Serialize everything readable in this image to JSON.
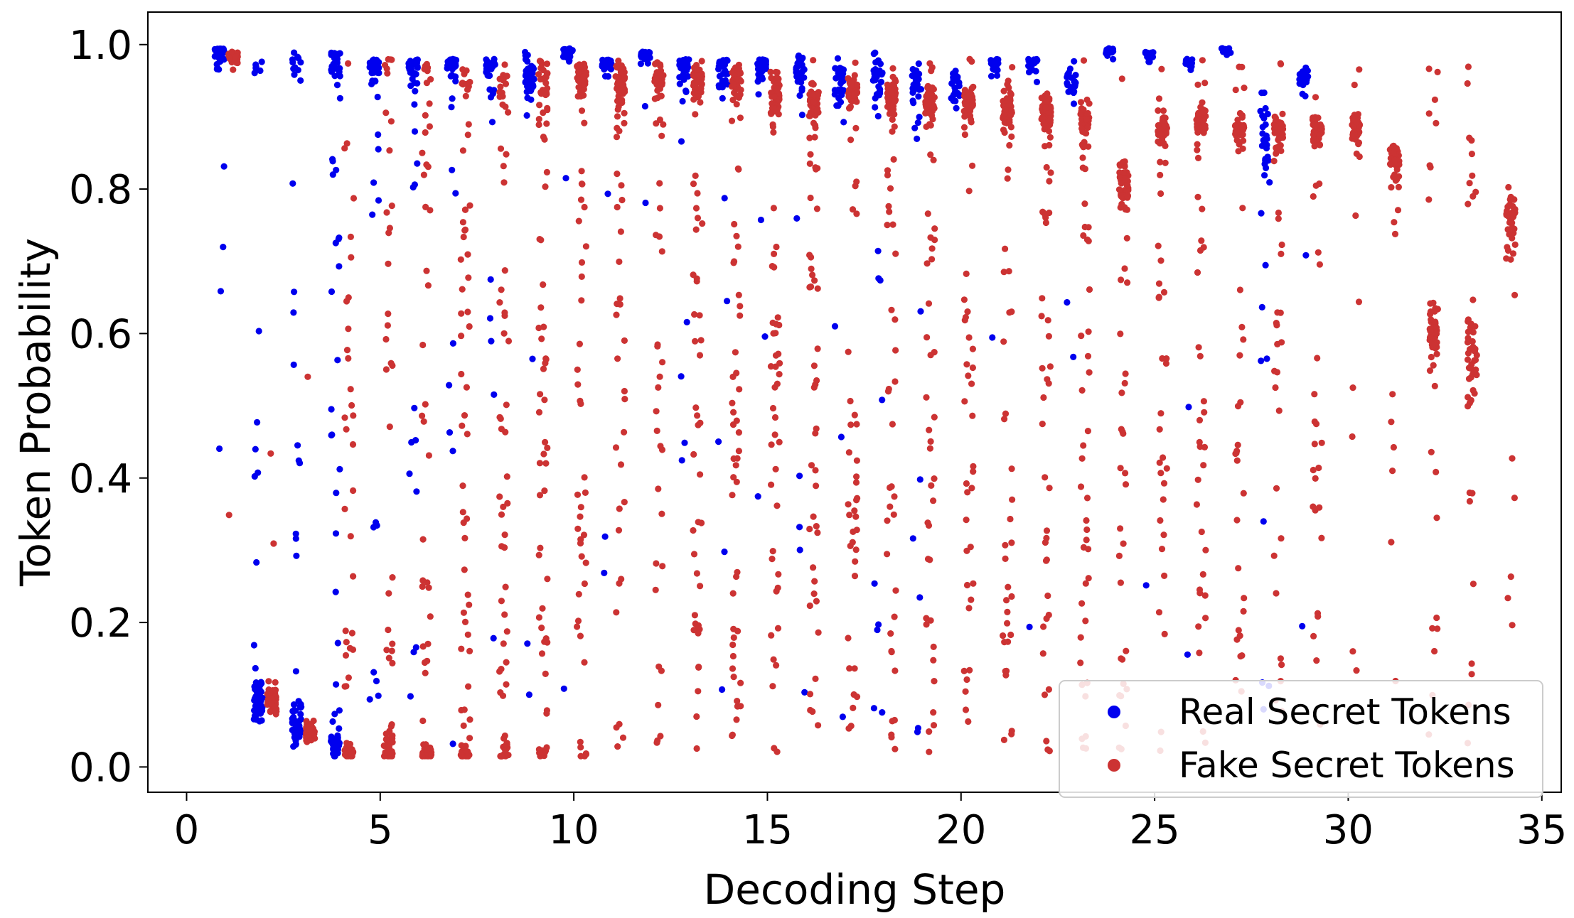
{
  "chart_data": {
    "type": "scatter",
    "title": "",
    "xlabel": "Decoding Step",
    "ylabel": "Token Probability",
    "xlim": [
      -1,
      35.5
    ],
    "ylim": [
      -0.035,
      1.045
    ],
    "xticks": [
      0,
      5,
      10,
      15,
      20,
      25,
      30,
      35
    ],
    "xtick_labels": [
      "0",
      "5",
      "10",
      "15",
      "20",
      "25",
      "30",
      "35"
    ],
    "yticks": [
      0.0,
      0.2,
      0.4,
      0.6,
      0.8,
      1.0
    ],
    "ytick_labels": [
      "0.0",
      "0.2",
      "0.4",
      "0.6",
      "0.8",
      "1.0"
    ],
    "legend_position": "bottom-right",
    "series": [
      {
        "name": "Real Secret Tokens",
        "color": "#0000ee",
        "x_offset": -0.15,
        "jitter": 0.12,
        "max_step": 29,
        "profile": [
          {
            "step": 1,
            "high_center": 0.995,
            "high_spread": 0.02,
            "high_count": 45,
            "low_center": 0.0,
            "low_spread": 0.0,
            "low_count": 0,
            "scatter_count": 4
          },
          {
            "step": 2,
            "high_center": 0.98,
            "high_spread": 0.03,
            "high_count": 6,
            "low_center": 0.09,
            "low_spread": 0.03,
            "low_count": 40,
            "scatter_count": 10
          },
          {
            "step": 3,
            "high_center": 0.99,
            "high_spread": 0.03,
            "high_count": 10,
            "low_center": 0.06,
            "low_spread": 0.03,
            "low_count": 35,
            "scatter_count": 14
          },
          {
            "step": 4,
            "high_center": 0.99,
            "high_spread": 0.03,
            "high_count": 25,
            "low_center": 0.03,
            "low_spread": 0.02,
            "low_count": 25,
            "scatter_count": 25
          },
          {
            "step": 5,
            "high_center": 0.98,
            "high_spread": 0.04,
            "high_count": 40,
            "low_center": 0.0,
            "low_spread": 0.0,
            "low_count": 0,
            "scatter_count": 14
          },
          {
            "step": 6,
            "high_center": 0.98,
            "high_spread": 0.05,
            "high_count": 40,
            "low_center": 0.0,
            "low_spread": 0.0,
            "low_count": 0,
            "scatter_count": 12
          },
          {
            "step": 7,
            "high_center": 0.98,
            "high_spread": 0.04,
            "high_count": 30,
            "low_center": 0.0,
            "low_spread": 0.0,
            "low_count": 0,
            "scatter_count": 10
          },
          {
            "step": 8,
            "high_center": 0.98,
            "high_spread": 0.05,
            "high_count": 35,
            "low_center": 0.0,
            "low_spread": 0.0,
            "low_count": 0,
            "scatter_count": 6
          },
          {
            "step": 9,
            "high_center": 0.97,
            "high_spread": 0.05,
            "high_count": 45,
            "low_center": 0.0,
            "low_spread": 0.0,
            "low_count": 0,
            "scatter_count": 3
          },
          {
            "step": 10,
            "high_center": 0.995,
            "high_spread": 0.02,
            "high_count": 30,
            "low_center": 0.0,
            "low_spread": 0.0,
            "low_count": 0,
            "scatter_count": 2
          },
          {
            "step": 11,
            "high_center": 0.98,
            "high_spread": 0.03,
            "high_count": 35,
            "low_center": 0.0,
            "low_spread": 0.0,
            "low_count": 0,
            "scatter_count": 3
          },
          {
            "step": 12,
            "high_center": 0.99,
            "high_spread": 0.02,
            "high_count": 30,
            "low_center": 0.0,
            "low_spread": 0.0,
            "low_count": 0,
            "scatter_count": 2
          },
          {
            "step": 13,
            "high_center": 0.98,
            "high_spread": 0.04,
            "high_count": 35,
            "low_center": 0.0,
            "low_spread": 0.0,
            "low_count": 0,
            "scatter_count": 6
          },
          {
            "step": 14,
            "high_center": 0.98,
            "high_spread": 0.04,
            "high_count": 35,
            "low_center": 0.0,
            "low_spread": 0.0,
            "low_count": 0,
            "scatter_count": 6
          },
          {
            "step": 15,
            "high_center": 0.98,
            "high_spread": 0.03,
            "high_count": 40,
            "low_center": 0.0,
            "low_spread": 0.0,
            "low_count": 0,
            "scatter_count": 4
          },
          {
            "step": 16,
            "high_center": 0.97,
            "high_spread": 0.04,
            "high_count": 30,
            "low_center": 0.0,
            "low_spread": 0.0,
            "low_count": 0,
            "scatter_count": 5
          },
          {
            "step": 17,
            "high_center": 0.96,
            "high_spread": 0.05,
            "high_count": 30,
            "low_center": 0.0,
            "low_spread": 0.0,
            "low_count": 0,
            "scatter_count": 4
          },
          {
            "step": 18,
            "high_center": 0.96,
            "high_spread": 0.05,
            "high_count": 28,
            "low_center": 0.0,
            "low_spread": 0.0,
            "low_count": 0,
            "scatter_count": 10
          },
          {
            "step": 19,
            "high_center": 0.96,
            "high_spread": 0.05,
            "high_count": 28,
            "low_center": 0.0,
            "low_spread": 0.0,
            "low_count": 0,
            "scatter_count": 8
          },
          {
            "step": 20,
            "high_center": 0.95,
            "high_spread": 0.05,
            "high_count": 24,
            "low_center": 0.0,
            "low_spread": 0.0,
            "low_count": 0,
            "scatter_count": 1
          },
          {
            "step": 21,
            "high_center": 0.98,
            "high_spread": 0.03,
            "high_count": 22,
            "low_center": 0.0,
            "low_spread": 0.0,
            "low_count": 0,
            "scatter_count": 1
          },
          {
            "step": 22,
            "high_center": 0.98,
            "high_spread": 0.03,
            "high_count": 22,
            "low_center": 0.0,
            "low_spread": 0.0,
            "low_count": 0,
            "scatter_count": 1
          },
          {
            "step": 23,
            "high_center": 0.96,
            "high_spread": 0.05,
            "high_count": 20,
            "low_center": 0.0,
            "low_spread": 0.0,
            "low_count": 0,
            "scatter_count": 2
          },
          {
            "step": 24,
            "high_center": 0.995,
            "high_spread": 0.02,
            "high_count": 14,
            "low_center": 0.0,
            "low_spread": 0.0,
            "low_count": 0,
            "scatter_count": 0
          },
          {
            "step": 25,
            "high_center": 0.99,
            "high_spread": 0.03,
            "high_count": 16,
            "low_center": 0.0,
            "low_spread": 0.0,
            "low_count": 0,
            "scatter_count": 1
          },
          {
            "step": 26,
            "high_center": 0.98,
            "high_spread": 0.03,
            "high_count": 14,
            "low_center": 0.0,
            "low_spread": 0.0,
            "low_count": 0,
            "scatter_count": 2
          },
          {
            "step": 27,
            "high_center": 0.995,
            "high_spread": 0.01,
            "high_count": 12,
            "low_center": 0.0,
            "low_spread": 0.0,
            "low_count": 0,
            "scatter_count": 0
          },
          {
            "step": 28,
            "high_center": 0.9,
            "high_spread": 0.1,
            "high_count": 24,
            "low_center": 0.0,
            "low_spread": 0.0,
            "low_count": 0,
            "scatter_count": 10
          },
          {
            "step": 29,
            "high_center": 0.96,
            "high_spread": 0.04,
            "high_count": 20,
            "low_center": 0.0,
            "low_spread": 0.0,
            "low_count": 0,
            "scatter_count": 2
          }
        ]
      },
      {
        "name": "Fake Secret Tokens",
        "color": "#cc3333",
        "x_offset": 0.2,
        "jitter": 0.12,
        "max_step": 34,
        "profile": [
          {
            "step": 1,
            "high_center": 0.99,
            "high_spread": 0.03,
            "high_count": 30,
            "low_center": 0.0,
            "low_spread": 0.0,
            "low_count": 0,
            "scatter_count": 1
          },
          {
            "step": 2,
            "high_center": 0.0,
            "high_spread": 0.0,
            "high_count": 0,
            "low_center": 0.095,
            "low_spread": 0.02,
            "low_count": 45,
            "scatter_count": 2
          },
          {
            "step": 3,
            "high_center": 0.0,
            "high_spread": 0.0,
            "high_count": 0,
            "low_center": 0.05,
            "low_spread": 0.015,
            "low_count": 40,
            "scatter_count": 3
          },
          {
            "step": 4,
            "high_center": 0.0,
            "high_spread": 0.0,
            "high_count": 0,
            "low_center": 0.02,
            "low_spread": 0.01,
            "low_count": 35,
            "scatter_count": 30
          },
          {
            "step": 5,
            "high_center": 0.98,
            "high_spread": 0.03,
            "high_count": 6,
            "low_center": 0.025,
            "low_spread": 0.03,
            "low_count": 30,
            "scatter_count": 25
          },
          {
            "step": 6,
            "high_center": 0.97,
            "high_spread": 0.03,
            "high_count": 6,
            "low_center": 0.02,
            "low_spread": 0.01,
            "low_count": 30,
            "scatter_count": 30
          },
          {
            "step": 7,
            "high_center": 0.96,
            "high_spread": 0.04,
            "high_count": 8,
            "low_center": 0.02,
            "low_spread": 0.01,
            "low_count": 25,
            "scatter_count": 45
          },
          {
            "step": 8,
            "high_center": 0.96,
            "high_spread": 0.04,
            "high_count": 10,
            "low_center": 0.02,
            "low_spread": 0.02,
            "low_count": 25,
            "scatter_count": 40
          },
          {
            "step": 9,
            "high_center": 0.96,
            "high_spread": 0.05,
            "high_count": 25,
            "low_center": 0.02,
            "low_spread": 0.01,
            "low_count": 12,
            "scatter_count": 45
          },
          {
            "step": 10,
            "high_center": 0.96,
            "high_spread": 0.04,
            "high_count": 35,
            "low_center": 0.02,
            "low_spread": 0.01,
            "low_count": 5,
            "scatter_count": 40
          },
          {
            "step": 11,
            "high_center": 0.96,
            "high_spread": 0.04,
            "high_count": 40,
            "low_center": 0.0,
            "low_spread": 0.0,
            "low_count": 0,
            "scatter_count": 40
          },
          {
            "step": 12,
            "high_center": 0.96,
            "high_spread": 0.03,
            "high_count": 40,
            "low_center": 0.0,
            "low_spread": 0.0,
            "low_count": 0,
            "scatter_count": 30
          },
          {
            "step": 13,
            "high_center": 0.96,
            "high_spread": 0.04,
            "high_count": 45,
            "low_center": 0.0,
            "low_spread": 0.0,
            "low_count": 0,
            "scatter_count": 40
          },
          {
            "step": 14,
            "high_center": 0.96,
            "high_spread": 0.04,
            "high_count": 45,
            "low_center": 0.0,
            "low_spread": 0.0,
            "low_count": 0,
            "scatter_count": 45
          },
          {
            "step": 15,
            "high_center": 0.94,
            "high_spread": 0.04,
            "high_count": 45,
            "low_center": 0.0,
            "low_spread": 0.0,
            "low_count": 0,
            "scatter_count": 45
          },
          {
            "step": 16,
            "high_center": 0.93,
            "high_spread": 0.04,
            "high_count": 45,
            "low_center": 0.0,
            "low_spread": 0.0,
            "low_count": 0,
            "scatter_count": 45
          },
          {
            "step": 17,
            "high_center": 0.94,
            "high_spread": 0.03,
            "high_count": 45,
            "low_center": 0.0,
            "low_spread": 0.0,
            "low_count": 0,
            "scatter_count": 40
          },
          {
            "step": 18,
            "high_center": 0.94,
            "high_spread": 0.04,
            "high_count": 45,
            "low_center": 0.0,
            "low_spread": 0.0,
            "low_count": 0,
            "scatter_count": 40
          },
          {
            "step": 19,
            "high_center": 0.93,
            "high_spread": 0.04,
            "high_count": 45,
            "low_center": 0.0,
            "low_spread": 0.0,
            "low_count": 0,
            "scatter_count": 40
          },
          {
            "step": 20,
            "high_center": 0.93,
            "high_spread": 0.03,
            "high_count": 45,
            "low_center": 0.0,
            "low_spread": 0.0,
            "low_count": 0,
            "scatter_count": 40
          },
          {
            "step": 21,
            "high_center": 0.92,
            "high_spread": 0.04,
            "high_count": 45,
            "low_center": 0.0,
            "low_spread": 0.0,
            "low_count": 0,
            "scatter_count": 40
          },
          {
            "step": 22,
            "high_center": 0.91,
            "high_spread": 0.04,
            "high_count": 45,
            "low_center": 0.0,
            "low_spread": 0.0,
            "low_count": 0,
            "scatter_count": 40
          },
          {
            "step": 23,
            "high_center": 0.9,
            "high_spread": 0.04,
            "high_count": 40,
            "low_center": 0.0,
            "low_spread": 0.0,
            "low_count": 0,
            "scatter_count": 40
          },
          {
            "step": 24,
            "high_center": 0.82,
            "high_spread": 0.06,
            "high_count": 45,
            "low_center": 0.0,
            "low_spread": 0.0,
            "low_count": 0,
            "scatter_count": 35
          },
          {
            "step": 25,
            "high_center": 0.89,
            "high_spread": 0.03,
            "high_count": 40,
            "low_center": 0.0,
            "low_spread": 0.0,
            "low_count": 0,
            "scatter_count": 35
          },
          {
            "step": 26,
            "high_center": 0.9,
            "high_spread": 0.03,
            "high_count": 40,
            "low_center": 0.0,
            "low_spread": 0.0,
            "low_count": 0,
            "scatter_count": 35
          },
          {
            "step": 27,
            "high_center": 0.89,
            "high_spread": 0.03,
            "high_count": 40,
            "low_center": 0.0,
            "low_spread": 0.0,
            "low_count": 0,
            "scatter_count": 30
          },
          {
            "step": 28,
            "high_center": 0.89,
            "high_spread": 0.03,
            "high_count": 40,
            "low_center": 0.0,
            "low_spread": 0.0,
            "low_count": 0,
            "scatter_count": 30
          },
          {
            "step": 29,
            "high_center": 0.89,
            "high_spread": 0.03,
            "high_count": 40,
            "low_center": 0.0,
            "low_spread": 0.0,
            "low_count": 0,
            "scatter_count": 25
          },
          {
            "step": 30,
            "high_center": 0.89,
            "high_spread": 0.03,
            "high_count": 35,
            "low_center": 0.0,
            "low_spread": 0.0,
            "low_count": 0,
            "scatter_count": 8
          },
          {
            "step": 31,
            "high_center": 0.85,
            "high_spread": 0.04,
            "high_count": 30,
            "low_center": 0.0,
            "low_spread": 0.0,
            "low_count": 0,
            "scatter_count": 10
          },
          {
            "step": 32,
            "high_center": 0.62,
            "high_spread": 0.06,
            "high_count": 35,
            "low_center": 0.0,
            "low_spread": 0.0,
            "low_count": 0,
            "scatter_count": 20
          },
          {
            "step": 33,
            "high_center": 0.6,
            "high_spread": 0.1,
            "high_count": 35,
            "low_center": 0.0,
            "low_spread": 0.0,
            "low_count": 0,
            "scatter_count": 20
          },
          {
            "step": 34,
            "high_center": 0.78,
            "high_spread": 0.07,
            "high_count": 45,
            "low_center": 0.0,
            "low_spread": 0.0,
            "low_count": 0,
            "scatter_count": 5
          }
        ]
      }
    ]
  }
}
